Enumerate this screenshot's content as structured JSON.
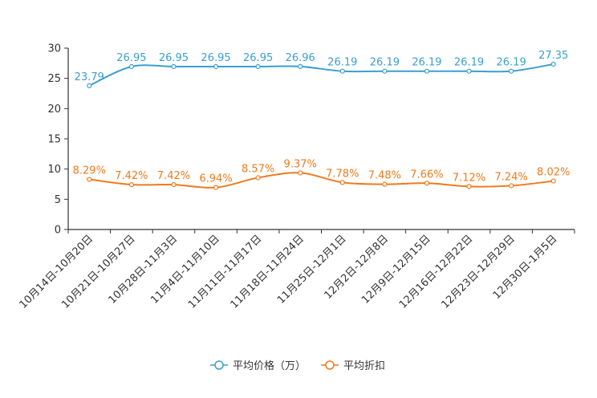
{
  "chart_data": {
    "type": "line",
    "title": "",
    "xlabel": "",
    "ylabel": "",
    "ylim": [
      0,
      30
    ],
    "yticks": [
      0,
      5,
      10,
      15,
      20,
      25,
      30
    ],
    "grid": false,
    "legend": "bottom-center",
    "categories": [
      "10月14日-10月20日",
      "10月21日-10月27日",
      "10月28日-11月3日",
      "11月4日-11月10日",
      "11月11日-11月17日",
      "11月18日-11月24日",
      "11月25日-12月1日",
      "12月2日-12月8日",
      "12月9日-12月15日",
      "12月16日-12月22日",
      "12月23日-12月29日",
      "12月30日-1月5日"
    ],
    "series": [
      {
        "name": "平均价格（万）",
        "color": "#3a9fd0",
        "values": [
          23.79,
          26.95,
          26.95,
          26.95,
          26.95,
          26.96,
          26.19,
          26.19,
          26.19,
          26.19,
          26.19,
          27.35
        ],
        "labels": [
          "23.79",
          "26.95",
          "26.95",
          "26.95",
          "26.95",
          "26.96",
          "26.19",
          "26.19",
          "26.19",
          "26.19",
          "26.19",
          "27.35"
        ]
      },
      {
        "name": "平均折扣",
        "color": "#f07a1c",
        "values": [
          8.29,
          7.42,
          7.42,
          6.94,
          8.57,
          9.37,
          7.78,
          7.48,
          7.66,
          7.12,
          7.24,
          8.02
        ],
        "labels": [
          "8.29%",
          "7.42%",
          "7.42%",
          "6.94%",
          "8.57%",
          "9.37%",
          "7.78%",
          "7.48%",
          "7.66%",
          "7.12%",
          "7.24%",
          "8.02%"
        ]
      }
    ]
  }
}
